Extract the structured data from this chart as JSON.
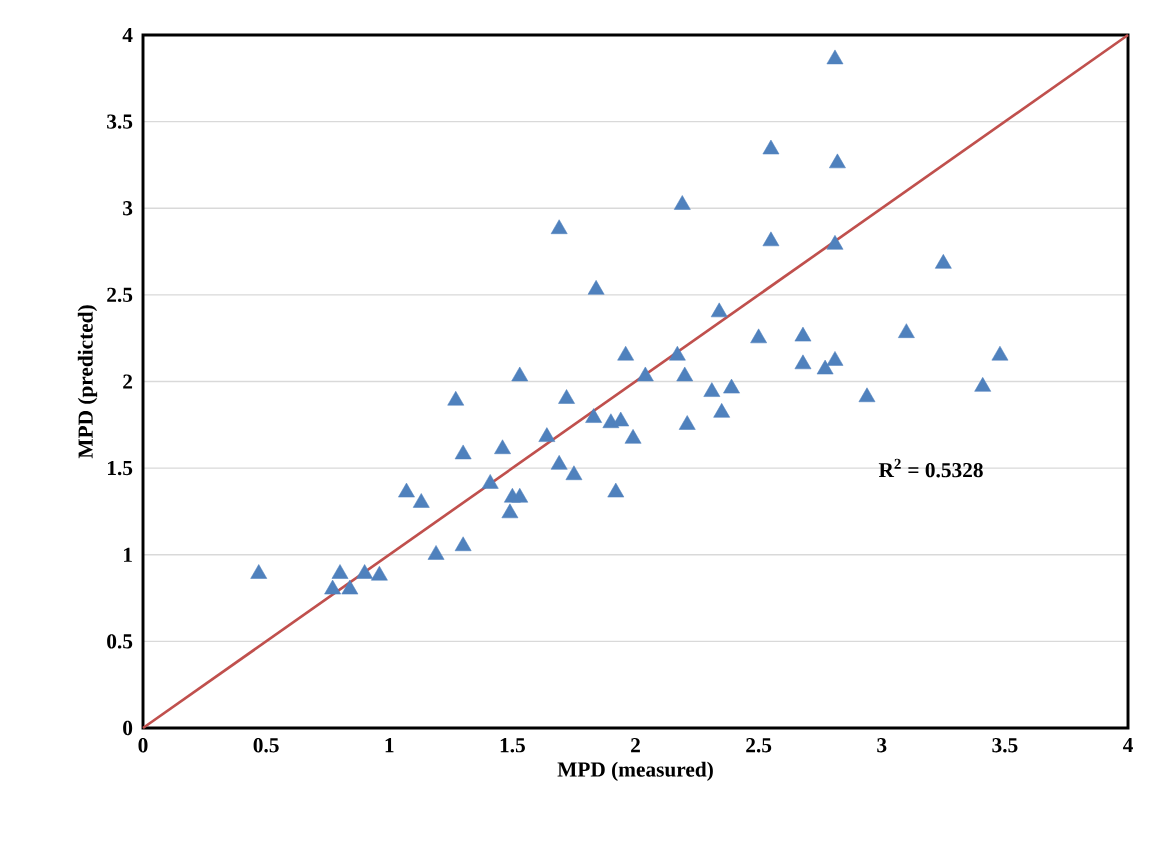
{
  "chart_data": {
    "type": "scatter",
    "xlabel": "MPD (measured)",
    "ylabel": "MPD (predicted)",
    "xlim": [
      0,
      4
    ],
    "ylim": [
      0,
      4
    ],
    "xticks": [
      0,
      0.5,
      1,
      1.5,
      2,
      2.5,
      3,
      3.5,
      4
    ],
    "yticks": [
      0,
      0.5,
      1,
      1.5,
      2,
      2.5,
      3,
      3.5,
      4
    ],
    "grid": "y",
    "annotations": [
      "R$^{2}$ = 0.5328"
    ],
    "series": [
      {
        "color": "#4f81bd",
        "marker": "triangle",
        "x": [
          0.47,
          0.8,
          0.77,
          0.84,
          0.9,
          0.96,
          1.19,
          1.3,
          1.07,
          1.13,
          1.27,
          1.3,
          1.41,
          1.46,
          1.49,
          1.5,
          1.53,
          1.53,
          1.64,
          1.69,
          1.69,
          1.72,
          1.75,
          1.84,
          1.83,
          1.9,
          1.94,
          1.92,
          1.96,
          1.99,
          2.04,
          2.17,
          2.19,
          2.2,
          2.21,
          2.31,
          2.34,
          2.35,
          2.39,
          2.5,
          2.55,
          2.55,
          2.68,
          2.68,
          2.77,
          2.81,
          2.81,
          2.82,
          2.81,
          2.94,
          3.1,
          3.25,
          3.41,
          3.48
        ],
        "values": [
          0.89,
          0.89,
          0.8,
          0.8,
          0.89,
          0.88,
          1.0,
          1.05,
          1.36,
          1.3,
          1.89,
          1.58,
          1.41,
          1.61,
          1.24,
          1.33,
          1.33,
          2.03,
          1.68,
          2.88,
          1.52,
          1.9,
          1.46,
          2.53,
          1.79,
          1.76,
          1.77,
          1.36,
          2.15,
          1.67,
          2.03,
          2.15,
          3.02,
          2.03,
          1.75,
          1.94,
          2.4,
          1.82,
          1.96,
          2.25,
          3.34,
          2.81,
          2.26,
          2.1,
          2.07,
          2.12,
          3.86,
          3.26,
          2.79,
          1.91,
          2.28,
          2.68,
          1.97,
          2.15
        ]
      },
      {
        "type": "line",
        "color": "#c0504d",
        "marker": "none",
        "x": [
          0,
          4
        ],
        "values": [
          0,
          4
        ]
      }
    ]
  }
}
